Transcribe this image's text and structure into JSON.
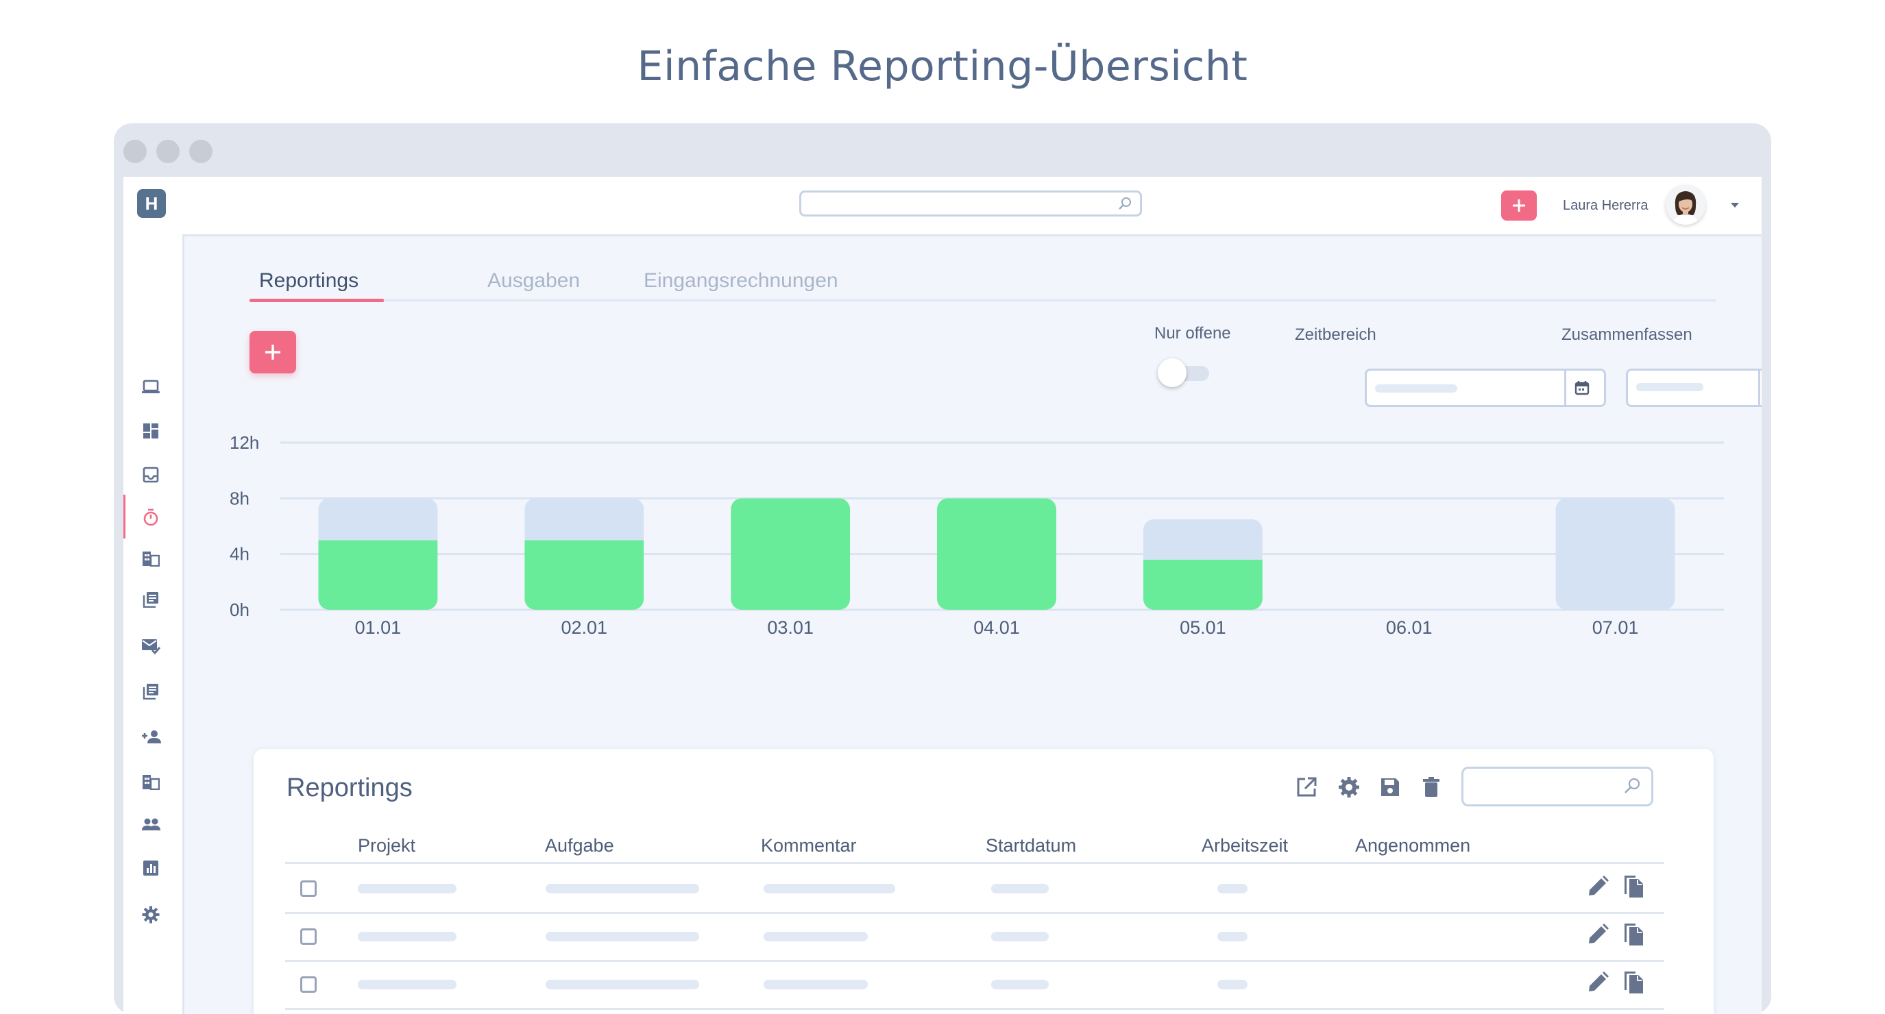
{
  "page_title": "Einfache Reporting-Übersicht",
  "app": {
    "logo_text": "H",
    "user_name": "Laura Hererra"
  },
  "tabs": [
    {
      "label": "Reportings",
      "active": true
    },
    {
      "label": "Ausgaben",
      "active": false
    },
    {
      "label": "Eingangsrechnungen",
      "active": false
    }
  ],
  "filters": {
    "only_open_label": "Nur offene",
    "only_open_on": false,
    "period_label": "Zeitbereich",
    "summarize_label": "Zusammenfassen"
  },
  "chart_data": {
    "type": "bar",
    "categories": [
      "01.01",
      "02.01",
      "03.01",
      "04.01",
      "05.01",
      "06.01",
      "07.01"
    ],
    "y_ticks": [
      "12h",
      "8h",
      "4h",
      "0h"
    ],
    "ylim": [
      0,
      12
    ],
    "series": [
      {
        "values": [
          5,
          5,
          8,
          8,
          3.6,
          0,
          0
        ],
        "color": "#69ec9a"
      },
      {
        "values": [
          3,
          3,
          0,
          0,
          2.9,
          0,
          8
        ],
        "color": "#d5e2f4"
      }
    ],
    "stacked": true,
    "grid": true
  },
  "table": {
    "title": "Reportings",
    "columns": [
      "Projekt",
      "Aufgabe",
      "Kommentar",
      "Startdatum",
      "Arbeitszeit",
      "Angenommen"
    ]
  },
  "colors": {
    "accent": "#f26b86",
    "bar_done": "#69ec9a",
    "bar_planned": "#d5e2f4",
    "text": "#4f5d78"
  }
}
